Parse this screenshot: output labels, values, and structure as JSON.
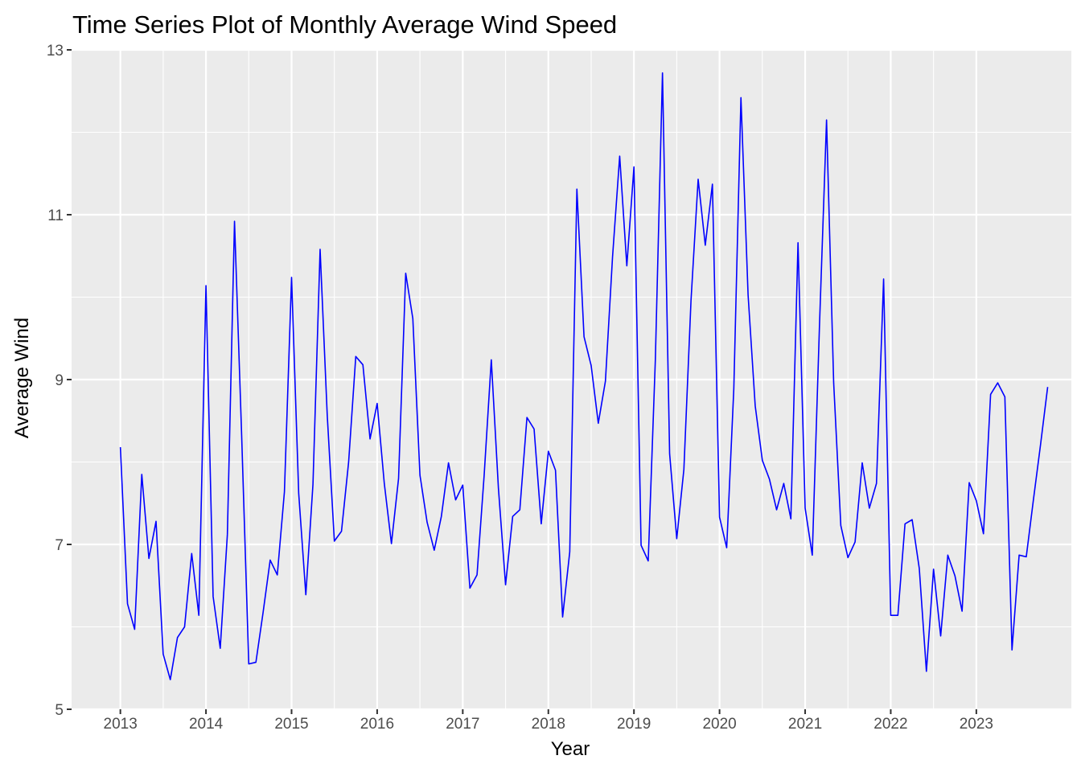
{
  "chart_data": {
    "type": "line",
    "title": "Time Series Plot of Monthly Average Wind Speed",
    "xlabel": "Year",
    "ylabel": "Average Wind",
    "xlim": [
      2012.43,
      2024.11
    ],
    "ylim": [
      5,
      13
    ],
    "x_ticks": [
      "2013",
      "2014",
      "2015",
      "2016",
      "2017",
      "2018",
      "2019",
      "2020",
      "2021",
      "2022",
      "2023"
    ],
    "y_ticks": [
      "5",
      "7",
      "9",
      "11",
      "13"
    ],
    "grid": true,
    "line_color": "#0000ff",
    "background_color": "#ebebeb",
    "grid_color": "#ffffff",
    "start": "2013-01",
    "frequency": "monthly",
    "series": [
      {
        "values": [
          8.18,
          6.28,
          5.97,
          7.85,
          6.83,
          7.28,
          5.67,
          5.36,
          5.87,
          6.0,
          6.89,
          6.14,
          10.14,
          6.37,
          5.74,
          7.12,
          10.92,
          8.33,
          5.55,
          5.57,
          6.17,
          6.81,
          6.63,
          7.64,
          10.24,
          7.62,
          6.39,
          7.73,
          10.58,
          8.57,
          7.04,
          7.16,
          8.0,
          9.28,
          9.18,
          8.28,
          8.71,
          7.74,
          7.01,
          7.8,
          10.29,
          9.74,
          7.84,
          7.27,
          6.93,
          7.34,
          7.99,
          7.54,
          7.72,
          6.47,
          6.63,
          7.84,
          9.24,
          7.68,
          6.51,
          7.34,
          7.42,
          8.54,
          8.4,
          7.25,
          8.13,
          7.9,
          6.12,
          6.91,
          11.31,
          9.52,
          9.17,
          8.47,
          8.98,
          10.49,
          11.71,
          10.38,
          11.58,
          6.99,
          6.8,
          9.24,
          12.72,
          8.1,
          7.07,
          7.91,
          9.96,
          11.43,
          10.63,
          11.37,
          7.33,
          6.96,
          8.89,
          12.42,
          10.03,
          8.68,
          8.02,
          7.79,
          7.42,
          7.74,
          7.31,
          10.66,
          7.44,
          6.87,
          9.63,
          12.15,
          8.96,
          7.23,
          6.84,
          7.03,
          7.99,
          7.44,
          7.74,
          10.22,
          6.14,
          6.14,
          7.25,
          7.3,
          6.71,
          5.46,
          6.7,
          5.89,
          6.87,
          6.62,
          6.19,
          7.75,
          7.53,
          7.13,
          8.82,
          8.96,
          8.79,
          5.72,
          6.87,
          6.85,
          7.54,
          8.21,
          8.91
        ]
      }
    ]
  }
}
